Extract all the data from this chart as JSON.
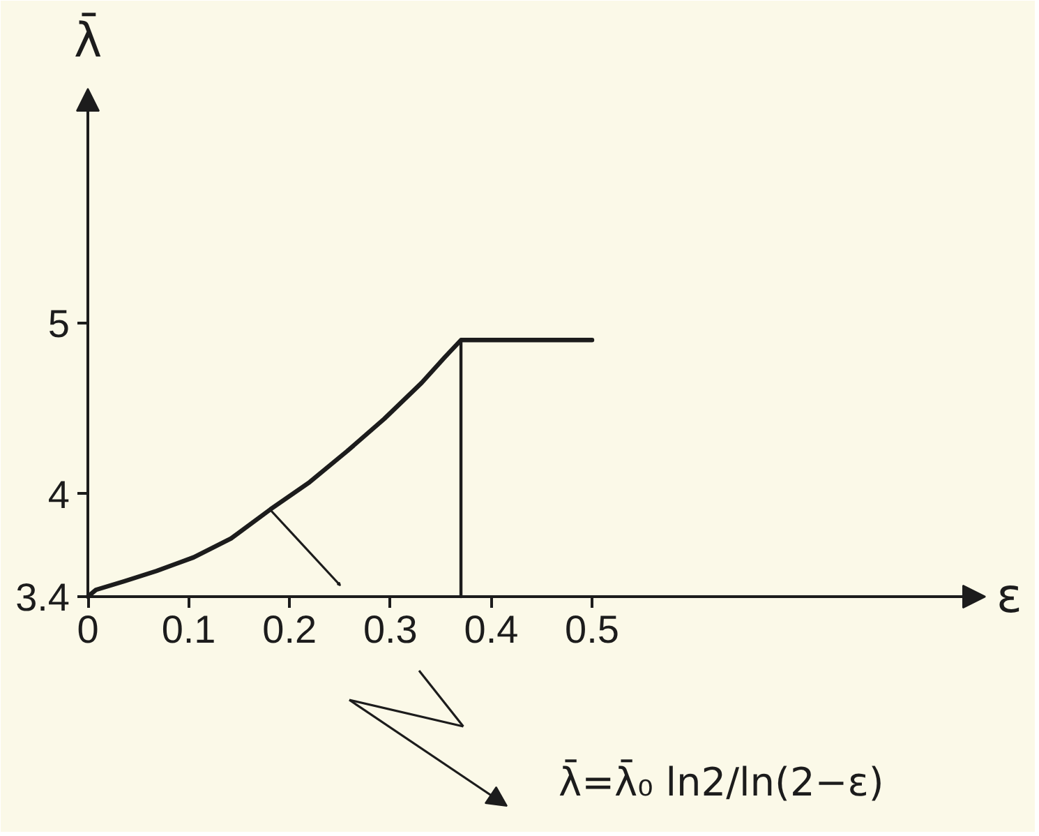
{
  "chart_data": {
    "type": "line",
    "xlabel": "ε",
    "ylabel": "λ̄",
    "xlim": [
      0,
      0.89
    ],
    "ylim": [
      3.4,
      6.37
    ],
    "xticks": [
      0,
      0.1,
      0.2,
      0.3,
      0.4,
      0.5
    ],
    "yticks": [
      3.4,
      4,
      5
    ],
    "series": [
      {
        "color": "#1c1c1c",
        "x": [
          0,
          0.008,
          0.036,
          0.068,
          0.105,
          0.142,
          0.181,
          0.22,
          0.257,
          0.294,
          0.331,
          0.354,
          0.37,
          0.5
        ],
        "values": [
          3.4,
          3.44,
          3.49,
          3.55,
          3.63,
          3.74,
          3.91,
          4.07,
          4.25,
          4.44,
          4.65,
          4.8,
          4.9,
          4.9
        ]
      },
      {
        "color": "#1c1c1c",
        "x": [
          0.37,
          0.37
        ],
        "values": [
          3.4,
          4.9
        ]
      }
    ],
    "annotations": [
      "λ̄=λ̄₀ ln2/ln(2−ε)"
    ]
  }
}
